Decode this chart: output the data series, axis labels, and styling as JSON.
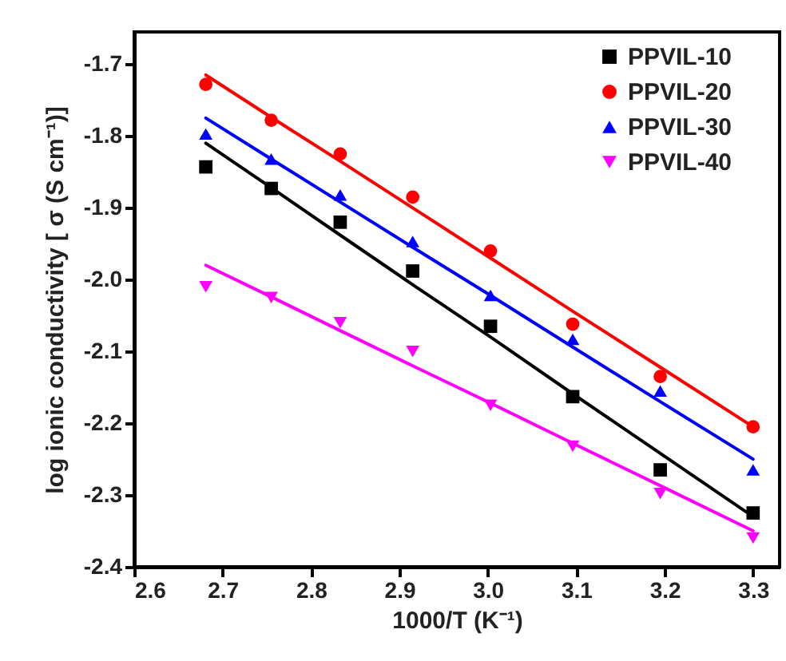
{
  "chart_data": {
    "type": "scatter",
    "xlabel": "1000/T (K⁻¹)",
    "ylabel": "log ionic conductivity [ σ (S cm⁻¹)]",
    "xlim": [
      2.6,
      3.33
    ],
    "xticks": [
      2.6,
      2.7,
      2.8,
      2.9,
      {
        "value": 3,
        "label": "3.0"
      },
      3.1,
      3.2,
      3.3
    ],
    "ylim": [
      -2.4,
      -1.655
    ],
    "yticks": [
      {
        "value": -2.4,
        "label": "-2.4"
      },
      {
        "value": -2.3,
        "label": "-2.3"
      },
      {
        "value": -2.2,
        "label": "-2.2"
      },
      {
        "value": -2.1,
        "label": "-2.1"
      },
      {
        "value": -2,
        "label": "-2.0"
      },
      {
        "value": -1.9,
        "label": "-1.9"
      },
      {
        "value": -1.8,
        "label": "-1.8"
      },
      {
        "value": -1.7,
        "label": "-1.7"
      }
    ],
    "grid": false,
    "legend": "top right",
    "x": [
      2.681,
      2.755,
      2.833,
      2.915,
      3.003,
      3.096,
      3.195,
      3.3
    ],
    "series": [
      {
        "name": "PPVIL-10",
        "color": "#000000",
        "marker": "square",
        "values": [
          -1.843,
          -1.873,
          -1.92,
          -1.988,
          -2.065,
          -2.163,
          -2.265,
          -2.325
        ]
      },
      {
        "name": "PPVIL-20",
        "color": "#ff0000",
        "marker": "circle",
        "values": [
          -1.728,
          -1.778,
          -1.825,
          -1.885,
          -1.96,
          -2.062,
          -2.135,
          -2.205
        ]
      },
      {
        "name": "PPVIL-30",
        "color": "#0000ff",
        "marker": "triangle",
        "values": [
          -1.797,
          -1.832,
          -1.882,
          -1.947,
          -2.022,
          -2.083,
          -2.155,
          -2.265
        ]
      },
      {
        "name": "PPVIL-40",
        "color": "#ff00ff",
        "marker": "triangle-down",
        "values": [
          -2.01,
          -2.025,
          -2.06,
          -2.1,
          -2.175,
          -2.232,
          -2.298,
          -2.36
        ]
      },
      {
        "type": "line",
        "color": "#000000",
        "values": [
          -1.81,
          -1.872,
          -1.938,
          -2.007,
          -2.08,
          -2.159,
          -2.242,
          -2.33
        ]
      },
      {
        "type": "line",
        "color": "#ff0000",
        "values": [
          -1.715,
          -1.774,
          -1.835,
          -1.9,
          -1.97,
          -2.044,
          -2.122,
          -2.205
        ]
      },
      {
        "type": "line",
        "color": "#0000ff",
        "values": [
          -1.775,
          -1.832,
          -1.892,
          -1.955,
          -2.022,
          -2.094,
          -2.17,
          -2.25
        ]
      },
      {
        "type": "line",
        "color": "#ff00ff",
        "values": [
          -1.98,
          -2.024,
          -2.071,
          -2.12,
          -2.172,
          -2.228,
          -2.287,
          -2.35
        ]
      }
    ]
  }
}
